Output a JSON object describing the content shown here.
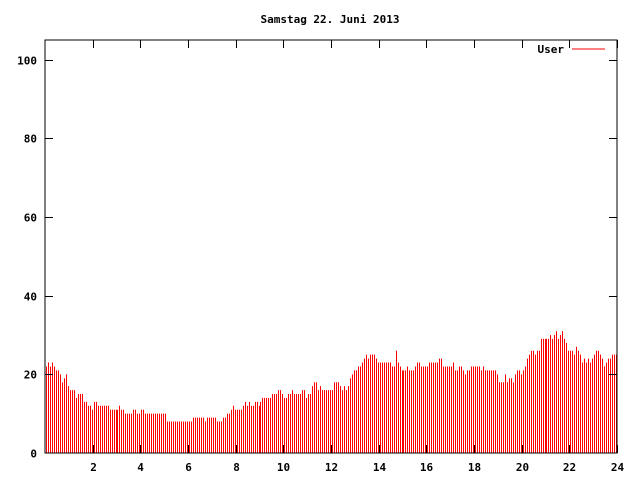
{
  "chart_data": {
    "type": "bar",
    "title": "Samstag 22. Juni 2013",
    "xlabel": "",
    "ylabel": "",
    "xlim": [
      0,
      24
    ],
    "ylim": [
      0,
      105
    ],
    "xticks": [
      "2",
      "4",
      "6",
      "8",
      "10",
      "12",
      "14",
      "16",
      "18",
      "20",
      "22",
      "24"
    ],
    "yticks": [
      "0",
      "20",
      "40",
      "60",
      "80",
      "100"
    ],
    "grid": false,
    "legend_position": "top-right",
    "series": [
      {
        "name": "User",
        "color": "#ff0000",
        "values": [
          22,
          23,
          22,
          23,
          22,
          21,
          21,
          20,
          18,
          19,
          20,
          17,
          16,
          16,
          16,
          14,
          15,
          15,
          15,
          13,
          13,
          12,
          12,
          11,
          13,
          13,
          12,
          12,
          12,
          12,
          12,
          12,
          11,
          11,
          11,
          11,
          11,
          12,
          11,
          11,
          10,
          10,
          10,
          10,
          11,
          11,
          10,
          10,
          11,
          11,
          10,
          10,
          10,
          10,
          10,
          10,
          10,
          10,
          10,
          10,
          10,
          8,
          8,
          8,
          8,
          8,
          8,
          8,
          8,
          8,
          8,
          8,
          8,
          8,
          9,
          9,
          9,
          9,
          9,
          9,
          8,
          9,
          9,
          9,
          9,
          9,
          8,
          8,
          8,
          9,
          9,
          10,
          10,
          11,
          12,
          11,
          11,
          11,
          11,
          12,
          13,
          12,
          13,
          12,
          12,
          13,
          13,
          12,
          13,
          14,
          14,
          14,
          14,
          14,
          15,
          15,
          15,
          16,
          16,
          15,
          14,
          14,
          15,
          15,
          16,
          15,
          15,
          15,
          15,
          16,
          16,
          14,
          15,
          15,
          17,
          18,
          18,
          16,
          17,
          16,
          16,
          16,
          16,
          16,
          16,
          18,
          18,
          18,
          17,
          16,
          17,
          16,
          17,
          19,
          20,
          21,
          21,
          22,
          22,
          23,
          24,
          25,
          24,
          25,
          25,
          25,
          24,
          23,
          23,
          23,
          23,
          23,
          23,
          23,
          22,
          22,
          26,
          23,
          22,
          21,
          21,
          21,
          22,
          21,
          21,
          21,
          22,
          23,
          23,
          22,
          22,
          22,
          22,
          23,
          23,
          23,
          23,
          23,
          24,
          24,
          22,
          22,
          22,
          22,
          22,
          23,
          21,
          21,
          22,
          22,
          21,
          20,
          21,
          21,
          22,
          22,
          22,
          22,
          22,
          21,
          22,
          21,
          21,
          21,
          21,
          21,
          21,
          20,
          18,
          18,
          18,
          20,
          18,
          19,
          19,
          18,
          20,
          21,
          21,
          20,
          21,
          22,
          24,
          25,
          26,
          26,
          25,
          26,
          26,
          29,
          29,
          29,
          29,
          29,
          30,
          29,
          30,
          31,
          29,
          30,
          31,
          29,
          28,
          26,
          26,
          26,
          25,
          27,
          26,
          25,
          23,
          24,
          23,
          24,
          23,
          24,
          25,
          26,
          26,
          25,
          24,
          22,
          23,
          24,
          24,
          25,
          25,
          25
        ]
      }
    ]
  }
}
